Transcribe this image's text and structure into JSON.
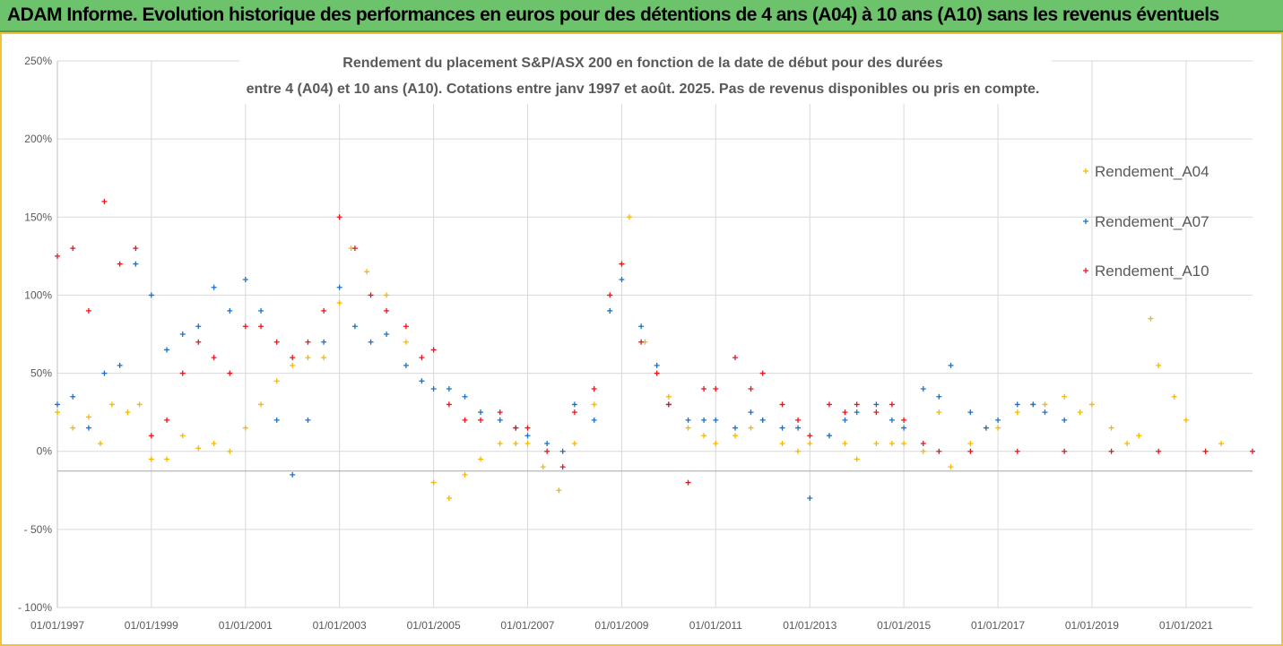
{
  "banner": {
    "title": "ADAM Informe. Evolution historique des performances en euros pour des détentions de 4 ans (A04) à 10 ans (A10) sans les revenus éventuels"
  },
  "colors": {
    "banner": "#6cc36c",
    "frame": "#f2c23a",
    "A04": "#f5b800",
    "A07": "#1f6fc5",
    "A10": "#e8141c"
  },
  "chart_data": {
    "type": "scatter",
    "title_line1": "Rendement du placement S&P/ASX 200 en fonction de la date de début pour des durées",
    "title_line2": "entre 4 (A04) et 10 ans (A10). Cotations entre janv 1997 et août. 2025. Pas de revenus disponibles ou pris en compte.",
    "xlabel": "",
    "ylabel": "",
    "x_range": [
      "1997-01-01",
      "2022-06-01"
    ],
    "ylim": [
      -100,
      250
    ],
    "y_ticks": [
      {
        "value": 250,
        "label": "250%"
      },
      {
        "value": 200,
        "label": "200%"
      },
      {
        "value": 150,
        "label": "150%"
      },
      {
        "value": 100,
        "label": "100%"
      },
      {
        "value": 50,
        "label": "50%"
      },
      {
        "value": 0,
        "label": "0%"
      },
      {
        "value": -50,
        "label": "- 50%"
      },
      {
        "value": -100,
        "label": "- 100%"
      }
    ],
    "x_ticks": [
      {
        "value": "1997-01-01",
        "label": "01/01/1997"
      },
      {
        "value": "1999-01-01",
        "label": "01/01/1999"
      },
      {
        "value": "2001-01-01",
        "label": "01/01/2001"
      },
      {
        "value": "2003-01-01",
        "label": "01/01/2003"
      },
      {
        "value": "2005-01-01",
        "label": "01/01/2005"
      },
      {
        "value": "2007-01-01",
        "label": "01/01/2007"
      },
      {
        "value": "2009-01-01",
        "label": "01/01/2009"
      },
      {
        "value": "2011-01-01",
        "label": "01/01/2011"
      },
      {
        "value": "2013-01-01",
        "label": "01/01/2013"
      },
      {
        "value": "2015-01-01",
        "label": "01/01/2015"
      },
      {
        "value": "2017-01-01",
        "label": "01/01/2017"
      },
      {
        "value": "2019-01-01",
        "label": "01/01/2019"
      },
      {
        "value": "2021-01-01",
        "label": "01/01/2021"
      }
    ],
    "grid": true,
    "legend_position": "right",
    "marker": "+",
    "series": [
      {
        "name": "Rendement_A04",
        "color": "#f5b800",
        "points": [
          [
            "1997-01-01",
            25
          ],
          [
            "1997-05-01",
            15
          ],
          [
            "1997-09-01",
            22
          ],
          [
            "1997-12-01",
            5
          ],
          [
            "1998-03-01",
            30
          ],
          [
            "1998-07-01",
            25
          ],
          [
            "1998-10-01",
            30
          ],
          [
            "1999-01-01",
            -5
          ],
          [
            "1999-05-01",
            -5
          ],
          [
            "1999-09-01",
            10
          ],
          [
            "2000-01-01",
            2
          ],
          [
            "2000-05-01",
            5
          ],
          [
            "2000-09-01",
            0
          ],
          [
            "2001-01-01",
            15
          ],
          [
            "2001-05-01",
            30
          ],
          [
            "2001-09-01",
            45
          ],
          [
            "2002-01-01",
            55
          ],
          [
            "2002-05-01",
            60
          ],
          [
            "2002-09-01",
            60
          ],
          [
            "2003-01-01",
            95
          ],
          [
            "2003-04-01",
            130
          ],
          [
            "2003-08-01",
            115
          ],
          [
            "2004-01-01",
            100
          ],
          [
            "2004-06-01",
            70
          ],
          [
            "2004-10-01",
            45
          ],
          [
            "2005-01-01",
            -20
          ],
          [
            "2005-05-01",
            -30
          ],
          [
            "2005-09-01",
            -15
          ],
          [
            "2006-01-01",
            -5
          ],
          [
            "2006-06-01",
            5
          ],
          [
            "2006-10-01",
            5
          ],
          [
            "2007-01-01",
            5
          ],
          [
            "2007-05-01",
            -10
          ],
          [
            "2007-09-01",
            -25
          ],
          [
            "2008-01-01",
            5
          ],
          [
            "2008-06-01",
            30
          ],
          [
            "2008-10-01",
            90
          ],
          [
            "2009-01-01",
            120
          ],
          [
            "2009-03-01",
            150
          ],
          [
            "2009-07-01",
            70
          ],
          [
            "2010-01-01",
            35
          ],
          [
            "2010-06-01",
            15
          ],
          [
            "2010-10-01",
            10
          ],
          [
            "2011-01-01",
            5
          ],
          [
            "2011-06-01",
            10
          ],
          [
            "2011-10-01",
            15
          ],
          [
            "2012-01-01",
            20
          ],
          [
            "2012-06-01",
            5
          ],
          [
            "2012-10-01",
            0
          ],
          [
            "2013-01-01",
            5
          ],
          [
            "2013-06-01",
            10
          ],
          [
            "2013-10-01",
            5
          ],
          [
            "2014-01-01",
            -5
          ],
          [
            "2014-06-01",
            5
          ],
          [
            "2014-10-01",
            5
          ],
          [
            "2015-01-01",
            5
          ],
          [
            "2015-06-01",
            0
          ],
          [
            "2015-10-01",
            25
          ],
          [
            "2016-01-01",
            -10
          ],
          [
            "2016-06-01",
            5
          ],
          [
            "2016-10-01",
            15
          ],
          [
            "2017-01-01",
            15
          ],
          [
            "2017-06-01",
            25
          ],
          [
            "2017-10-01",
            30
          ],
          [
            "2018-01-01",
            30
          ],
          [
            "2018-06-01",
            35
          ],
          [
            "2018-10-01",
            25
          ],
          [
            "2019-01-01",
            30
          ],
          [
            "2019-06-01",
            15
          ],
          [
            "2019-10-01",
            5
          ],
          [
            "2020-01-01",
            10
          ],
          [
            "2020-04-01",
            85
          ],
          [
            "2020-06-01",
            55
          ],
          [
            "2020-10-01",
            35
          ],
          [
            "2021-01-01",
            20
          ],
          [
            "2021-06-01",
            0
          ],
          [
            "2021-10-01",
            5
          ]
        ]
      },
      {
        "name": "Rendement_A07",
        "color": "#1f6fc5",
        "points": [
          [
            "1997-01-01",
            30
          ],
          [
            "1997-05-01",
            35
          ],
          [
            "1997-09-01",
            15
          ],
          [
            "1998-01-01",
            50
          ],
          [
            "1998-05-01",
            55
          ],
          [
            "1998-09-01",
            120
          ],
          [
            "1999-01-01",
            100
          ],
          [
            "1999-05-01",
            65
          ],
          [
            "1999-09-01",
            75
          ],
          [
            "2000-01-01",
            80
          ],
          [
            "2000-05-01",
            105
          ],
          [
            "2000-09-01",
            90
          ],
          [
            "2001-01-01",
            110
          ],
          [
            "2001-05-01",
            90
          ],
          [
            "2001-09-01",
            20
          ],
          [
            "2002-01-01",
            -15
          ],
          [
            "2002-05-01",
            20
          ],
          [
            "2002-09-01",
            70
          ],
          [
            "2003-01-01",
            105
          ],
          [
            "2003-05-01",
            80
          ],
          [
            "2003-09-01",
            70
          ],
          [
            "2004-01-01",
            75
          ],
          [
            "2004-06-01",
            55
          ],
          [
            "2004-10-01",
            45
          ],
          [
            "2005-01-01",
            40
          ],
          [
            "2005-05-01",
            40
          ],
          [
            "2005-09-01",
            35
          ],
          [
            "2006-01-01",
            25
          ],
          [
            "2006-06-01",
            20
          ],
          [
            "2006-10-01",
            15
          ],
          [
            "2007-01-01",
            10
          ],
          [
            "2007-06-01",
            5
          ],
          [
            "2007-10-01",
            0
          ],
          [
            "2008-01-01",
            30
          ],
          [
            "2008-06-01",
            20
          ],
          [
            "2008-10-01",
            90
          ],
          [
            "2009-01-01",
            110
          ],
          [
            "2009-06-01",
            80
          ],
          [
            "2009-10-01",
            55
          ],
          [
            "2010-01-01",
            30
          ],
          [
            "2010-06-01",
            20
          ],
          [
            "2010-10-01",
            20
          ],
          [
            "2011-01-01",
            20
          ],
          [
            "2011-06-01",
            15
          ],
          [
            "2011-10-01",
            25
          ],
          [
            "2012-01-01",
            20
          ],
          [
            "2012-06-01",
            15
          ],
          [
            "2012-10-01",
            15
          ],
          [
            "2013-01-01",
            -30
          ],
          [
            "2013-06-01",
            10
          ],
          [
            "2013-10-01",
            20
          ],
          [
            "2014-01-01",
            25
          ],
          [
            "2014-06-01",
            30
          ],
          [
            "2014-10-01",
            20
          ],
          [
            "2015-01-01",
            15
          ],
          [
            "2015-06-01",
            40
          ],
          [
            "2015-10-01",
            35
          ],
          [
            "2016-01-01",
            55
          ],
          [
            "2016-06-01",
            25
          ],
          [
            "2016-10-01",
            15
          ],
          [
            "2017-01-01",
            20
          ],
          [
            "2017-06-01",
            30
          ],
          [
            "2017-10-01",
            30
          ],
          [
            "2018-01-01",
            25
          ],
          [
            "2018-06-01",
            20
          ]
        ]
      },
      {
        "name": "Rendement_A10",
        "color": "#e8141c",
        "points": [
          [
            "1997-01-01",
            125
          ],
          [
            "1997-05-01",
            130
          ],
          [
            "1997-09-01",
            90
          ],
          [
            "1998-01-01",
            160
          ],
          [
            "1998-05-01",
            120
          ],
          [
            "1998-09-01",
            130
          ],
          [
            "1999-01-01",
            10
          ],
          [
            "1999-05-01",
            20
          ],
          [
            "1999-09-01",
            50
          ],
          [
            "2000-01-01",
            70
          ],
          [
            "2000-05-01",
            60
          ],
          [
            "2000-09-01",
            50
          ],
          [
            "2001-01-01",
            80
          ],
          [
            "2001-05-01",
            80
          ],
          [
            "2001-09-01",
            70
          ],
          [
            "2002-01-01",
            60
          ],
          [
            "2002-05-01",
            70
          ],
          [
            "2002-09-01",
            90
          ],
          [
            "2003-01-01",
            150
          ],
          [
            "2003-05-01",
            130
          ],
          [
            "2003-09-01",
            100
          ],
          [
            "2004-01-01",
            90
          ],
          [
            "2004-06-01",
            80
          ],
          [
            "2004-10-01",
            60
          ],
          [
            "2005-01-01",
            65
          ],
          [
            "2005-05-01",
            30
          ],
          [
            "2005-09-01",
            20
          ],
          [
            "2006-01-01",
            20
          ],
          [
            "2006-06-01",
            25
          ],
          [
            "2006-10-01",
            15
          ],
          [
            "2007-01-01",
            15
          ],
          [
            "2007-06-01",
            0
          ],
          [
            "2007-10-01",
            -10
          ],
          [
            "2008-01-01",
            25
          ],
          [
            "2008-06-01",
            40
          ],
          [
            "2008-10-01",
            100
          ],
          [
            "2009-01-01",
            120
          ],
          [
            "2009-06-01",
            70
          ],
          [
            "2009-10-01",
            50
          ],
          [
            "2010-01-01",
            30
          ],
          [
            "2010-06-01",
            -20
          ],
          [
            "2010-10-01",
            40
          ],
          [
            "2011-01-01",
            40
          ],
          [
            "2011-06-01",
            60
          ],
          [
            "2011-10-01",
            40
          ],
          [
            "2012-01-01",
            50
          ],
          [
            "2012-06-01",
            30
          ],
          [
            "2012-10-01",
            20
          ],
          [
            "2013-01-01",
            10
          ],
          [
            "2013-06-01",
            30
          ],
          [
            "2013-10-01",
            25
          ],
          [
            "2014-01-01",
            30
          ],
          [
            "2014-06-01",
            25
          ],
          [
            "2014-10-01",
            30
          ],
          [
            "2015-01-01",
            20
          ],
          [
            "2015-06-01",
            5
          ],
          [
            "2015-10-01",
            0
          ],
          [
            "2016-06-01",
            0
          ],
          [
            "2017-06-01",
            0
          ],
          [
            "2018-06-01",
            0
          ],
          [
            "2019-06-01",
            0
          ],
          [
            "2020-06-01",
            0
          ],
          [
            "2021-06-01",
            0
          ],
          [
            "2022-06-01",
            0
          ]
        ]
      }
    ]
  }
}
